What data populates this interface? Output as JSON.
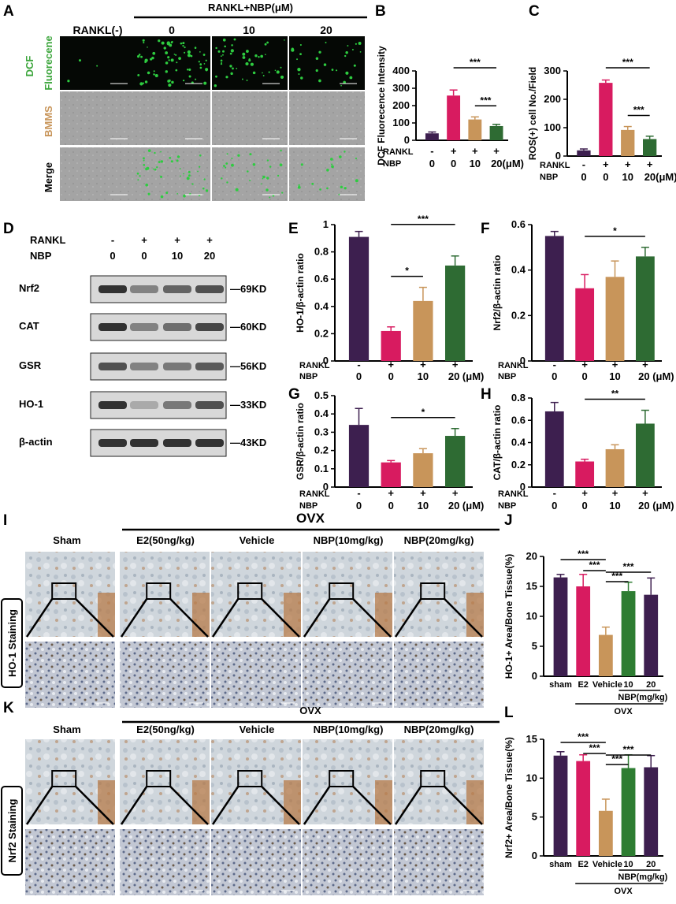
{
  "panel_letters": [
    "A",
    "B",
    "C",
    "D",
    "E",
    "F",
    "G",
    "H",
    "I",
    "J",
    "K",
    "L"
  ],
  "colors": {
    "c0": "#3d1f4f",
    "c1": "#d81b60",
    "c2": "#c8955a",
    "c3": "#2e6b33",
    "green": "#2e7d32",
    "fluor": "#2ecc40",
    "dcf_label": "#3ba53b",
    "bmms_label": "#c8955a"
  },
  "panel_a": {
    "header_group": "RANKL+NBP(μM)",
    "columns": [
      "RANKL(-)",
      "0",
      "10",
      "20"
    ],
    "row_labels": [
      {
        "parts": [
          {
            "text": "DCF",
            "color": "#3ba53b"
          },
          {
            "text": "Fluorecene",
            "color": "#3ba53b"
          }
        ]
      },
      {
        "parts": [
          {
            "text": "BMMS",
            "color": "#c8955a"
          }
        ]
      },
      {
        "parts": [
          {
            "text": "Merge",
            "color": "#000000"
          }
        ]
      }
    ]
  },
  "panel_d": {
    "treat_labels": [
      "RANKL",
      "NBP"
    ],
    "rankl": [
      "-",
      "+",
      "+",
      "+"
    ],
    "nbp": [
      "0",
      "0",
      "10",
      "20"
    ],
    "bands": [
      {
        "name": "Nrf2",
        "kd": "—69KD"
      },
      {
        "name": "CAT",
        "kd": "—60KD"
      },
      {
        "name": "GSR",
        "kd": "—56KD"
      },
      {
        "name": "HO-1",
        "kd": "—33KD"
      },
      {
        "name": "β-actin",
        "kd": "—43KD"
      }
    ]
  },
  "panel_i": {
    "group": "OVX",
    "columns": [
      "Sham",
      "E2(50ng/kg)",
      "Vehicle",
      "NBP(10mg/kg)",
      "NBP(20mg/kg)"
    ],
    "side_label": "HO-1 Staining"
  },
  "panel_k": {
    "group": "OVX",
    "columns": [
      "Sham",
      "E2(50ng/kg)",
      "Vehicle",
      "NBP(10mg/kg)",
      "NBP(20mg/kg)"
    ],
    "side_label": "Nrf2 Staining"
  },
  "chart_data": [
    {
      "id": "B",
      "type": "bar",
      "ylabel": "DCF Fluorecence Intensity",
      "ylim": [
        0,
        400
      ],
      "yticks": [
        0,
        100,
        200,
        300,
        400
      ],
      "values": [
        40,
        258,
        120,
        82
      ],
      "errors": [
        8,
        32,
        15,
        10
      ],
      "row1_label": "RANKL",
      "row1": [
        "-",
        "+",
        "+",
        "+"
      ],
      "row2_label": "NBP",
      "row2": [
        "0",
        "0",
        "10",
        "20(μM)"
      ],
      "sig": [
        {
          "from": 1,
          "to": 3,
          "label": "***"
        },
        {
          "from": 2,
          "to": 3,
          "label": "***"
        }
      ]
    },
    {
      "id": "C",
      "type": "bar",
      "ylabel": "ROS(+) cell No./Field",
      "ylim": [
        0,
        300
      ],
      "yticks": [
        0,
        100,
        200,
        300
      ],
      "values": [
        20,
        258,
        92,
        60
      ],
      "errors": [
        5,
        10,
        12,
        10
      ],
      "row1_label": "RANKL",
      "row1": [
        "-",
        "+",
        "+",
        "+"
      ],
      "row2_label": "NBP",
      "row2": [
        "0",
        "0",
        "10",
        "20(μM)"
      ],
      "sig": [
        {
          "from": 1,
          "to": 3,
          "label": "***"
        },
        {
          "from": 2,
          "to": 3,
          "label": "***"
        }
      ]
    },
    {
      "id": "E",
      "type": "bar",
      "ylabel": "HO-1/β-actin ratio",
      "ylim": [
        0,
        1.0
      ],
      "yticks": [
        0,
        0.2,
        0.4,
        0.6,
        0.8,
        1.0
      ],
      "values": [
        0.91,
        0.22,
        0.44,
        0.7
      ],
      "errors": [
        0.04,
        0.03,
        0.1,
        0.07
      ],
      "row1_label": "RANKL",
      "row1": [
        "-",
        "+",
        "+",
        "+"
      ],
      "row2_label": "NBP",
      "row2": [
        "0",
        "0",
        "10",
        "20 (μM)"
      ],
      "sig": [
        {
          "from": 1,
          "to": 3,
          "label": "***"
        },
        {
          "from": 1,
          "to": 2,
          "label": "*"
        }
      ]
    },
    {
      "id": "F",
      "type": "bar",
      "ylabel": "Nrf2/β-actin ratio",
      "ylim": [
        0,
        0.6
      ],
      "yticks": [
        0,
        0.2,
        0.4,
        0.6
      ],
      "values": [
        0.55,
        0.32,
        0.37,
        0.46
      ],
      "errors": [
        0.02,
        0.06,
        0.07,
        0.04
      ],
      "row1_label": "RANKL",
      "row1": [
        "-",
        "+",
        "+",
        "+"
      ],
      "row2_label": "NBP",
      "row2": [
        "0",
        "0",
        "10",
        "20 (μM)"
      ],
      "sig": [
        {
          "from": 1,
          "to": 3,
          "label": "*"
        }
      ]
    },
    {
      "id": "G",
      "type": "bar",
      "ylabel": "GSR/β-actin ratio",
      "ylim": [
        0,
        0.5
      ],
      "yticks": [
        0,
        0.1,
        0.2,
        0.3,
        0.4,
        0.5
      ],
      "values": [
        0.34,
        0.135,
        0.185,
        0.28
      ],
      "errors": [
        0.09,
        0.01,
        0.025,
        0.04
      ],
      "row1_label": "RANKL",
      "row1": [
        "-",
        "+",
        "+",
        "+"
      ],
      "row2_label": "NBP",
      "row2": [
        "0",
        "0",
        "10",
        "20 (μM)"
      ],
      "sig": [
        {
          "from": 1,
          "to": 3,
          "label": "*"
        }
      ]
    },
    {
      "id": "H",
      "type": "bar",
      "ylabel": "CAT/β-actin ratio",
      "ylim": [
        0,
        0.8
      ],
      "yticks": [
        0,
        0.2,
        0.4,
        0.6,
        0.8
      ],
      "values": [
        0.68,
        0.23,
        0.34,
        0.57
      ],
      "errors": [
        0.08,
        0.02,
        0.04,
        0.12
      ],
      "row1_label": "RANKL",
      "row1": [
        "-",
        "+",
        "+",
        "+"
      ],
      "row2_label": "NBP",
      "row2": [
        "0",
        "0",
        "10",
        "20 (μM)"
      ],
      "sig": [
        {
          "from": 1,
          "to": 3,
          "label": "**"
        }
      ]
    },
    {
      "id": "J",
      "type": "bar",
      "ylabel": "HO-1+ Area/Bone Tissue(%)",
      "ylim": [
        0,
        20
      ],
      "yticks": [
        0,
        5,
        10,
        15,
        20
      ],
      "values": [
        16.5,
        15.0,
        6.9,
        14.2,
        13.6
      ],
      "errors": [
        0.5,
        2.0,
        1.3,
        1.5,
        2.8
      ],
      "categories": [
        "sham",
        "E2",
        "Vehicle",
        "10",
        "20"
      ],
      "sublabel": "NBP(mg/kg)",
      "group": "OVX",
      "sig": [
        {
          "from": 0,
          "to": 2,
          "label": "***"
        },
        {
          "from": 1,
          "to": 2,
          "label": "***"
        },
        {
          "from": 2,
          "to": 3,
          "label": "***"
        },
        {
          "from": 2,
          "to": 4,
          "label": "***"
        }
      ]
    },
    {
      "id": "L",
      "type": "bar",
      "ylabel": "Nrf2+ Area/Bone Tissue(%)",
      "ylim": [
        0,
        15
      ],
      "yticks": [
        0,
        5,
        10,
        15
      ],
      "values": [
        12.9,
        12.2,
        5.8,
        11.3,
        11.4
      ],
      "errors": [
        0.5,
        0.8,
        1.5,
        1.7,
        1.5
      ],
      "categories": [
        "sham",
        "E2",
        "Vehicle",
        "10",
        "20"
      ],
      "sublabel": "NBP(mg/kg)",
      "group": "OVX",
      "sig": [
        {
          "from": 0,
          "to": 2,
          "label": "***"
        },
        {
          "from": 1,
          "to": 2,
          "label": "***"
        },
        {
          "from": 2,
          "to": 3,
          "label": "***"
        },
        {
          "from": 2,
          "to": 4,
          "label": "***"
        }
      ]
    }
  ]
}
